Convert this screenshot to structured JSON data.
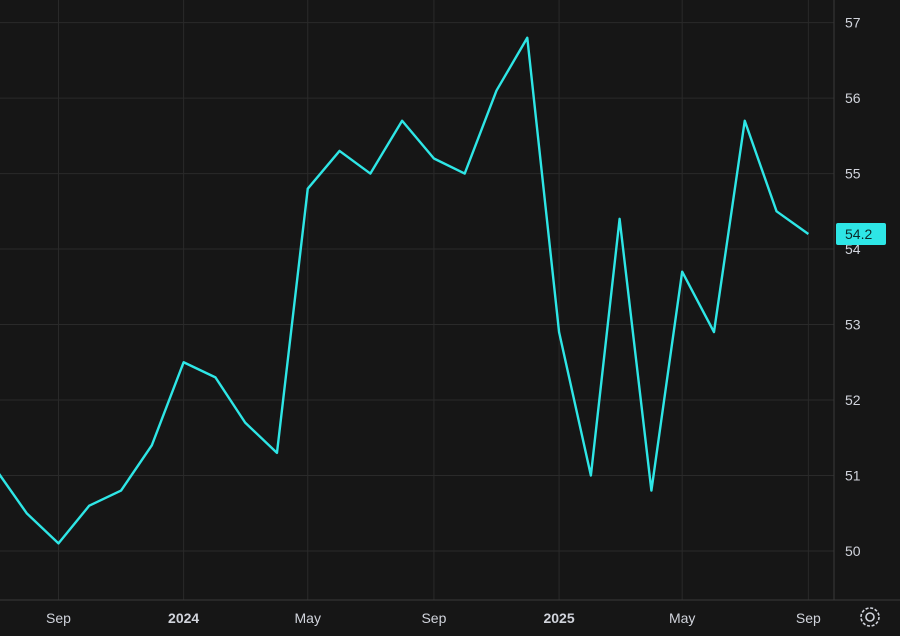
{
  "chart_data": {
    "type": "line",
    "title": "",
    "xlabel": "",
    "ylabel": "",
    "ylim": [
      49.35,
      57.3
    ],
    "y_ticks": [
      50,
      51,
      52,
      53,
      54,
      55,
      56,
      57
    ],
    "x_ticks": [
      {
        "label": "Sep",
        "date": "2023-09",
        "bold": false
      },
      {
        "label": "2024",
        "date": "2024-01",
        "bold": true
      },
      {
        "label": "May",
        "date": "2024-05",
        "bold": false
      },
      {
        "label": "Sep",
        "date": "2024-09",
        "bold": false
      },
      {
        "label": "2025",
        "date": "2025-01",
        "bold": true
      },
      {
        "label": "May",
        "date": "2025-05",
        "bold": false
      },
      {
        "label": "Sep",
        "date": "2025-09",
        "bold": false
      }
    ],
    "x_range": [
      "2023-07-20",
      "2025-10-10"
    ],
    "grid": true,
    "legend": "none",
    "series": [
      {
        "color": "#2ee6e6",
        "points": [
          {
            "x": "2023-07",
            "y": 51.1
          },
          {
            "x": "2023-08",
            "y": 50.5
          },
          {
            "x": "2023-09",
            "y": 50.1
          },
          {
            "x": "2023-10",
            "y": 50.6
          },
          {
            "x": "2023-11",
            "y": 50.8
          },
          {
            "x": "2023-12",
            "y": 51.4
          },
          {
            "x": "2024-01",
            "y": 52.5
          },
          {
            "x": "2024-02",
            "y": 52.3
          },
          {
            "x": "2024-03",
            "y": 51.7
          },
          {
            "x": "2024-04",
            "y": 51.3
          },
          {
            "x": "2024-05",
            "y": 54.8
          },
          {
            "x": "2024-06",
            "y": 55.3
          },
          {
            "x": "2024-07",
            "y": 55.0
          },
          {
            "x": "2024-08",
            "y": 55.7
          },
          {
            "x": "2024-09",
            "y": 55.2
          },
          {
            "x": "2024-10",
            "y": 55.0
          },
          {
            "x": "2024-11",
            "y": 56.1
          },
          {
            "x": "2024-12",
            "y": 56.8
          },
          {
            "x": "2025-01",
            "y": 52.9
          },
          {
            "x": "2025-02",
            "y": 51.0
          },
          {
            "x": "2025-03",
            "y": 54.4
          },
          {
            "x": "2025-04",
            "y": 50.8
          },
          {
            "x": "2025-05",
            "y": 53.7
          },
          {
            "x": "2025-06",
            "y": 52.9
          },
          {
            "x": "2025-07",
            "y": 55.7
          },
          {
            "x": "2025-08",
            "y": 54.5
          },
          {
            "x": "2025-09",
            "y": 54.2
          }
        ]
      }
    ],
    "last_value_label": "54.2"
  },
  "colors": {
    "background": "#161616",
    "grid": "#2a2a2a",
    "axis_line": "#3a3a3a",
    "text": "#d1d4dc",
    "line": "#2ee6e6",
    "label_bg": "#2ee6e6"
  },
  "ui": {
    "settings_icon": "settings-gear-icon"
  }
}
